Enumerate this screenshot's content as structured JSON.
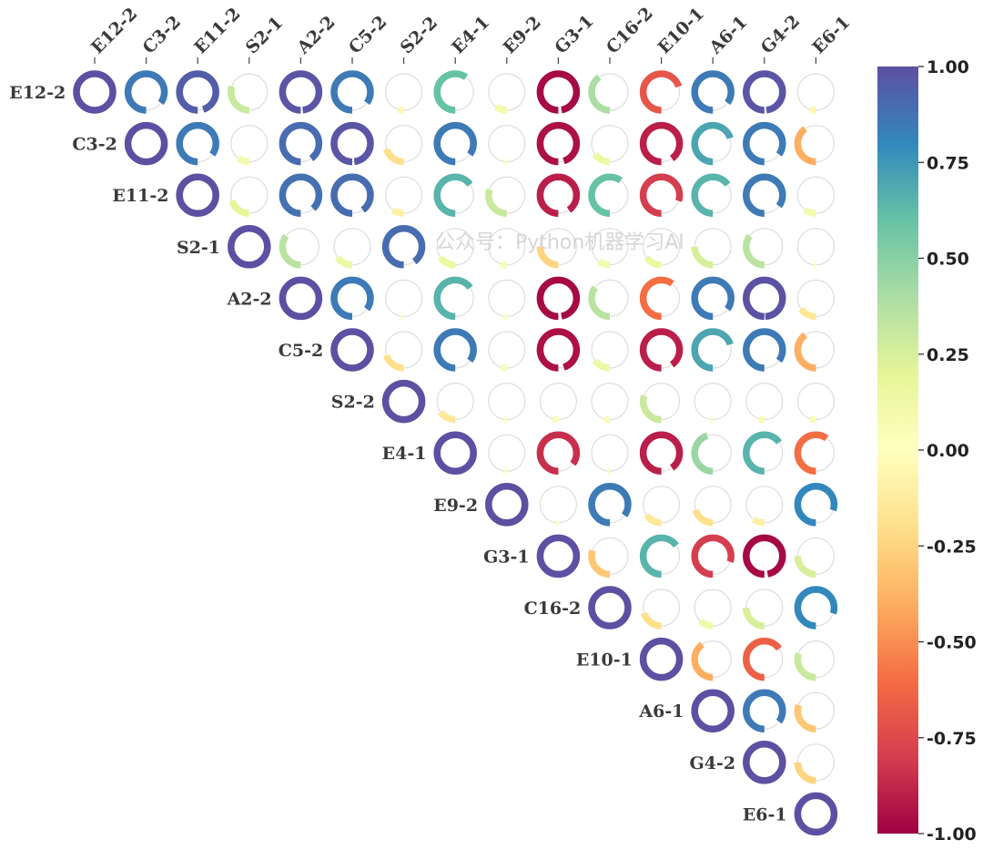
{
  "chart_data": {
    "type": "heatmap",
    "style": "upper-triangular correlation matrix drawn as donut rings; arc length = |r|, color = r on Spectral colormap",
    "labels": [
      "E12-2",
      "C3-2",
      "E11-2",
      "S2-1",
      "A2-2",
      "C5-2",
      "S2-2",
      "E4-1",
      "E9-2",
      "G3-1",
      "C16-2",
      "E10-1",
      "A6-1",
      "G4-2",
      "E6-1"
    ],
    "matrix": [
      [
        1.0,
        0.85,
        0.95,
        0.3,
        0.98,
        0.85,
        -0.05,
        0.6,
        0.1,
        -0.97,
        0.4,
        -0.7,
        0.85,
        0.98,
        -0.05
      ],
      [
        null,
        1.0,
        0.85,
        0.1,
        0.9,
        0.98,
        -0.2,
        0.85,
        0.02,
        -0.95,
        0.15,
        -0.9,
        0.7,
        0.85,
        -0.4
      ],
      [
        null,
        null,
        1.0,
        0.2,
        0.88,
        0.9,
        -0.1,
        0.65,
        0.3,
        -0.9,
        0.6,
        -0.8,
        0.65,
        0.85,
        0.1
      ],
      [
        null,
        null,
        null,
        1.0,
        0.35,
        0.15,
        0.9,
        0.15,
        0.05,
        -0.25,
        0.1,
        0.15,
        0.25,
        0.35,
        0.02
      ],
      [
        null,
        null,
        null,
        null,
        1.0,
        0.85,
        0.02,
        0.65,
        0.02,
        -0.97,
        0.35,
        -0.6,
        0.85,
        0.99,
        -0.15
      ],
      [
        null,
        null,
        null,
        null,
        null,
        1.0,
        -0.2,
        0.85,
        0.05,
        -0.95,
        0.15,
        -0.9,
        0.7,
        0.85,
        -0.4
      ],
      [
        null,
        null,
        null,
        null,
        null,
        null,
        1.0,
        -0.15,
        0.02,
        0.05,
        0.05,
        0.3,
        0.02,
        0.05,
        0.05
      ],
      [
        null,
        null,
        null,
        null,
        null,
        null,
        null,
        1.0,
        0.02,
        -0.85,
        0.02,
        -0.9,
        0.45,
        0.65,
        -0.6
      ],
      [
        null,
        null,
        null,
        null,
        null,
        null,
        null,
        null,
        1.0,
        0.02,
        0.85,
        -0.15,
        -0.2,
        -0.1,
        0.8
      ],
      [
        null,
        null,
        null,
        null,
        null,
        null,
        null,
        null,
        null,
        1.0,
        -0.3,
        0.65,
        -0.8,
        -0.97,
        0.25
      ],
      [
        null,
        null,
        null,
        null,
        null,
        null,
        null,
        null,
        null,
        null,
        1.0,
        -0.2,
        0.12,
        0.25,
        0.8
      ],
      [
        null,
        null,
        null,
        null,
        null,
        null,
        null,
        null,
        null,
        null,
        null,
        1.0,
        -0.4,
        -0.65,
        0.3
      ],
      [
        null,
        null,
        null,
        null,
        null,
        null,
        null,
        null,
        null,
        null,
        null,
        null,
        1.0,
        0.85,
        -0.3
      ],
      [
        null,
        null,
        null,
        null,
        null,
        null,
        null,
        null,
        null,
        null,
        null,
        null,
        null,
        1.0,
        -0.25
      ],
      [
        null,
        null,
        null,
        null,
        null,
        null,
        null,
        null,
        null,
        null,
        null,
        null,
        null,
        null,
        1.0
      ]
    ],
    "colorbar": {
      "range": [
        -1.0,
        1.0
      ],
      "ticks": [
        "1.00",
        "0.75",
        "0.50",
        "0.25",
        "0.00",
        "-0.25",
        "-0.50",
        "-0.75",
        "-1.00"
      ],
      "colormap": "Spectral",
      "colors": [
        "#9e0142",
        "#d53e4f",
        "#f46d43",
        "#fdae61",
        "#fee08b",
        "#ffffbf",
        "#e6f598",
        "#abdda4",
        "#66c2a5",
        "#3288bd",
        "#5e4fa2"
      ]
    },
    "ring_track_color": "#dddddd",
    "watermark": "公众号：Python机器学习AI"
  }
}
